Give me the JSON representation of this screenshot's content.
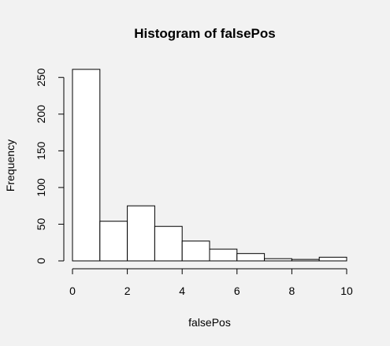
{
  "chart_data": {
    "type": "bar",
    "title": "Histogram of falsePos",
    "xlabel": "falsePos",
    "ylabel": "Frequency",
    "bin_edges": [
      0,
      1,
      2,
      3,
      4,
      5,
      6,
      7,
      8,
      9,
      10
    ],
    "values": [
      261,
      54,
      75,
      47,
      27,
      16,
      10,
      3,
      2,
      5
    ],
    "xlim": [
      0,
      10
    ],
    "ylim": [
      0,
      261
    ],
    "x_ticks": [
      0,
      2,
      4,
      6,
      8,
      10
    ],
    "y_ticks": [
      0,
      50,
      100,
      150,
      200,
      250
    ],
    "grid": false,
    "colors": {
      "bar_fill": "#ffffff",
      "bar_stroke": "#000000",
      "background": "#f2f2f2"
    }
  }
}
